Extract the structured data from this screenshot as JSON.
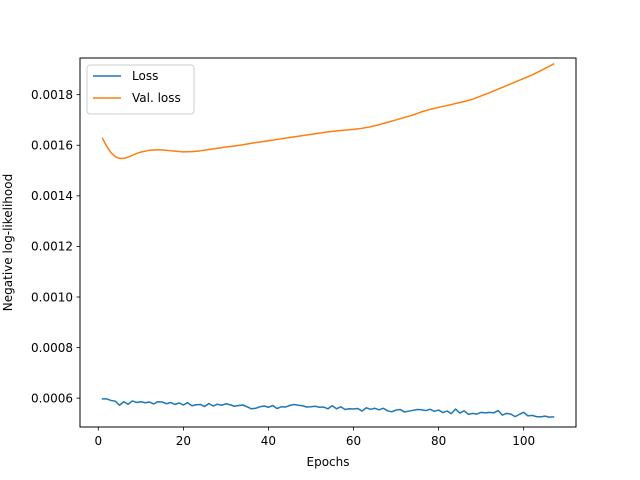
{
  "chart_data": {
    "type": "line",
    "title": "",
    "xlabel": "Epochs",
    "ylabel": "Negative log-likelihood",
    "xlim": [
      -4.3,
      112.3
    ],
    "ylim": [
      0.000486,
      0.001945
    ],
    "xticks": [
      0,
      20,
      40,
      60,
      80,
      100
    ],
    "xtick_labels": [
      "0",
      "20",
      "40",
      "60",
      "80",
      "100"
    ],
    "yticks": [
      0.0006,
      0.0008,
      0.001,
      0.0012,
      0.0014,
      0.0016,
      0.0018
    ],
    "ytick_labels": [
      "0.0006",
      "0.0008",
      "0.0010",
      "0.0012",
      "0.0014",
      "0.0016",
      "0.0018"
    ],
    "grid": false,
    "legend_position": "top-left",
    "series": [
      {
        "name": "Loss",
        "color": "#1f77b4",
        "points": [
          [
            1,
            0.000597
          ],
          [
            2,
            0.000597
          ],
          [
            3,
            0.000591
          ],
          [
            4,
            0.000588
          ],
          [
            5,
            0.000572
          ],
          [
            6,
            0.000586
          ],
          [
            7,
            0.000576
          ],
          [
            8,
            0.000589
          ],
          [
            9,
            0.000583
          ],
          [
            10,
            0.000586
          ],
          [
            11,
            0.000582
          ],
          [
            12,
            0.000585
          ],
          [
            13,
            0.000577
          ],
          [
            14,
            0.000586
          ],
          [
            15,
            0.000585
          ],
          [
            16,
            0.000578
          ],
          [
            17,
            0.000583
          ],
          [
            18,
            0.000575
          ],
          [
            19,
            0.000581
          ],
          [
            20,
            0.000573
          ],
          [
            21,
            0.000582
          ],
          [
            22,
            0.00057
          ],
          [
            23,
            0.000574
          ],
          [
            24,
            0.000575
          ],
          [
            25,
            0.000567
          ],
          [
            26,
            0.000579
          ],
          [
            27,
            0.000569
          ],
          [
            28,
            0.000576
          ],
          [
            29,
            0.000572
          ],
          [
            30,
            0.000578
          ],
          [
            31,
            0.000574
          ],
          [
            32,
            0.000568
          ],
          [
            33,
            0.000571
          ],
          [
            34,
            0.000573
          ],
          [
            35,
            0.000566
          ],
          [
            36,
            0.000558
          ],
          [
            37,
            0.00056
          ],
          [
            38,
            0.000566
          ],
          [
            39,
            0.000569
          ],
          [
            40,
            0.000564
          ],
          [
            41,
            0.000571
          ],
          [
            42,
            0.000559
          ],
          [
            43,
            0.000566
          ],
          [
            44,
            0.000565
          ],
          [
            45,
            0.000571
          ],
          [
            46,
            0.000575
          ],
          [
            47,
            0.000572
          ],
          [
            48,
            0.00057
          ],
          [
            49,
            0.000565
          ],
          [
            50,
            0.000566
          ],
          [
            51,
            0.000568
          ],
          [
            52,
            0.000564
          ],
          [
            53,
            0.000565
          ],
          [
            54,
            0.000558
          ],
          [
            55,
            0.00057
          ],
          [
            56,
            0.000558
          ],
          [
            57,
            0.000566
          ],
          [
            58,
            0.000555
          ],
          [
            59,
            0.000558
          ],
          [
            60,
            0.000557
          ],
          [
            61,
            0.000559
          ],
          [
            62,
            0.000549
          ],
          [
            63,
            0.000562
          ],
          [
            64,
            0.000556
          ],
          [
            65,
            0.00056
          ],
          [
            66,
            0.000554
          ],
          [
            67,
            0.00056
          ],
          [
            68,
            0.00055
          ],
          [
            69,
            0.000546
          ],
          [
            70,
            0.000553
          ],
          [
            71,
            0.000555
          ],
          [
            72,
            0.000545
          ],
          [
            73,
            0.000549
          ],
          [
            74,
            0.000552
          ],
          [
            75,
            0.000555
          ],
          [
            76,
            0.000554
          ],
          [
            77,
            0.000551
          ],
          [
            78,
            0.000556
          ],
          [
            79,
            0.000548
          ],
          [
            80,
            0.000553
          ],
          [
            81,
            0.000543
          ],
          [
            82,
            0.000549
          ],
          [
            83,
            0.000539
          ],
          [
            84,
            0.000557
          ],
          [
            85,
            0.000541
          ],
          [
            86,
            0.00055
          ],
          [
            87,
            0.000536
          ],
          [
            88,
            0.00054
          ],
          [
            89,
            0.000537
          ],
          [
            90,
            0.000544
          ],
          [
            91,
            0.000542
          ],
          [
            92,
            0.000544
          ],
          [
            93,
            0.000542
          ],
          [
            94,
            0.000551
          ],
          [
            95,
            0.000533
          ],
          [
            96,
            0.00054
          ],
          [
            97,
            0.000537
          ],
          [
            98,
            0.000527
          ],
          [
            99,
            0.000536
          ],
          [
            100,
            0.000544
          ],
          [
            101,
            0.00053
          ],
          [
            102,
            0.000532
          ],
          [
            103,
            0.000527
          ],
          [
            104,
            0.000526
          ],
          [
            105,
            0.000529
          ],
          [
            106,
            0.000525
          ],
          [
            107,
            0.000526
          ]
        ]
      },
      {
        "name": "Val. loss",
        "color": "#ff7f0e",
        "points": [
          [
            1,
            0.001627
          ],
          [
            2,
            0.001595
          ],
          [
            3,
            0.00157
          ],
          [
            4,
            0.001555
          ],
          [
            5,
            0.001548
          ],
          [
            6,
            0.001548
          ],
          [
            7,
            0.001553
          ],
          [
            8,
            0.00156
          ],
          [
            9,
            0.001567
          ],
          [
            10,
            0.001573
          ],
          [
            12,
            0.00158
          ],
          [
            14,
            0.001582
          ],
          [
            16,
            0.00158
          ],
          [
            18,
            0.001577
          ],
          [
            20,
            0.001574
          ],
          [
            22,
            0.001575
          ],
          [
            24,
            0.001578
          ],
          [
            26,
            0.001583
          ],
          [
            28,
            0.001588
          ],
          [
            30,
            0.001593
          ],
          [
            32,
            0.001597
          ],
          [
            34,
            0.001602
          ],
          [
            36,
            0.001608
          ],
          [
            38,
            0.001613
          ],
          [
            40,
            0.001618
          ],
          [
            42,
            0.001623
          ],
          [
            44,
            0.001628
          ],
          [
            46,
            0.001633
          ],
          [
            48,
            0.001638
          ],
          [
            50,
            0.001643
          ],
          [
            52,
            0.001648
          ],
          [
            54,
            0.001653
          ],
          [
            56,
            0.001657
          ],
          [
            58,
            0.00166
          ],
          [
            60,
            0.001663
          ],
          [
            62,
            0.001667
          ],
          [
            64,
            0.001673
          ],
          [
            66,
            0.001681
          ],
          [
            68,
            0.001691
          ],
          [
            70,
            0.0017
          ],
          [
            72,
            0.00171
          ],
          [
            74,
            0.00172
          ],
          [
            76,
            0.001732
          ],
          [
            78,
            0.001742
          ],
          [
            80,
            0.00175
          ],
          [
            82,
            0.001757
          ],
          [
            84,
            0.001765
          ],
          [
            86,
            0.001773
          ],
          [
            88,
            0.001782
          ],
          [
            90,
            0.001795
          ],
          [
            92,
            0.001808
          ],
          [
            94,
            0.001822
          ],
          [
            96,
            0.001836
          ],
          [
            98,
            0.00185
          ],
          [
            100,
            0.001864
          ],
          [
            102,
            0.001878
          ],
          [
            104,
            0.001895
          ],
          [
            106,
            0.001912
          ],
          [
            107,
            0.001921
          ]
        ]
      }
    ]
  }
}
